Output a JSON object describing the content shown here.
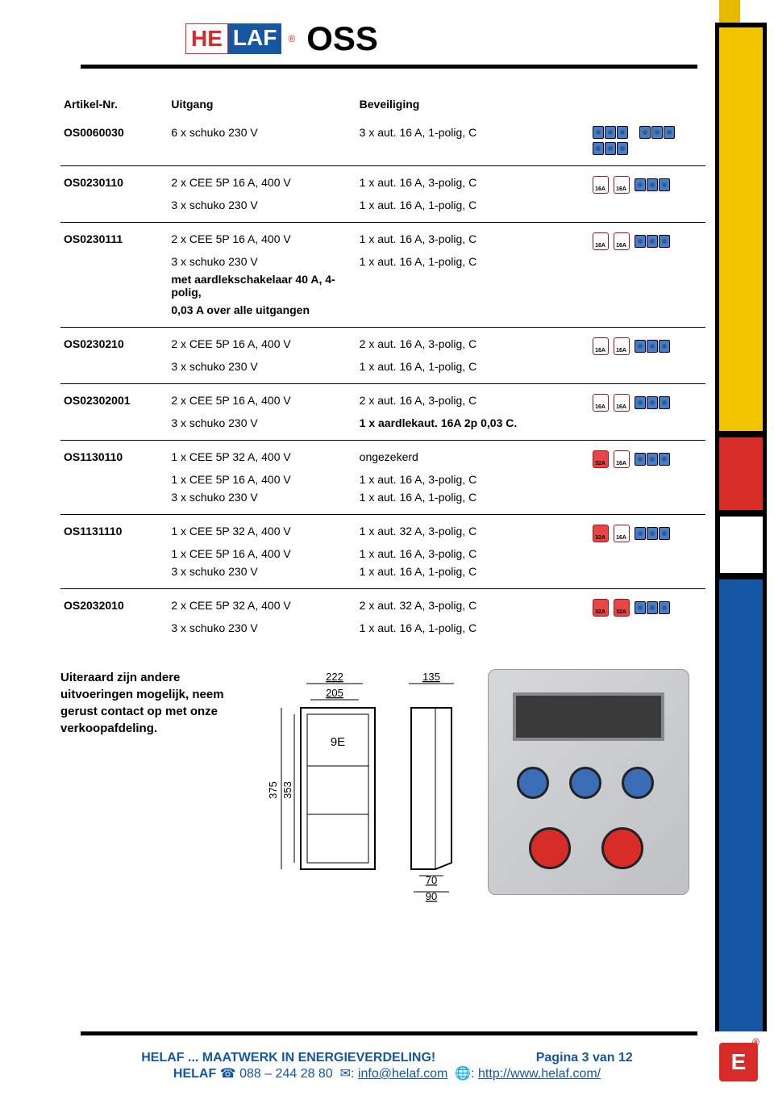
{
  "header": {
    "logo_left": "HE",
    "logo_right": "LAF",
    "title": "OSS"
  },
  "table": {
    "headers": {
      "c1": "Artikel-Nr.",
      "c2": "Uitgang",
      "c3": "Beveiliging"
    },
    "rows": [
      {
        "art": "OS0060030",
        "lines": [
          {
            "out": "6 x schuko 230 V",
            "bev": "3 x aut. 16 A, 1-polig, C"
          }
        ],
        "icons": {
          "schuko_rows": 2,
          "schuko_per": 3,
          "cee": []
        }
      },
      {
        "art": "OS0230110",
        "lines": [
          {
            "out": "2 x CEE 5P  16 A, 400 V",
            "bev": "1 x aut. 16 A, 3-polig, C"
          },
          {
            "out": "3 x schuko 230 V",
            "bev": "1 x aut. 16 A, 1-polig, C"
          }
        ],
        "icons": {
          "schuko_rows": 1,
          "schuko_per": 3,
          "cee": [
            {
              "label": "16A",
              "filled": false
            },
            {
              "label": "16A",
              "filled": false
            }
          ]
        }
      },
      {
        "art": "OS0230111",
        "lines": [
          {
            "out": "2 x CEE 5P  16 A, 400 V",
            "bev": "1 x aut. 16 A, 3-polig, C"
          },
          {
            "out": "3 x schuko 230 V",
            "bev": "1 x aut. 16 A, 1-polig, C"
          },
          {
            "out": "met aardlekschakelaar 40 A, 4-polig,",
            "bev": "",
            "bold": true
          },
          {
            "out": "0,03 A over alle uitgangen",
            "bev": "",
            "bold": true
          }
        ],
        "icons": {
          "schuko_rows": 1,
          "schuko_per": 3,
          "cee": [
            {
              "label": "16A",
              "filled": false
            },
            {
              "label": "16A",
              "filled": false
            }
          ]
        }
      },
      {
        "art": "OS0230210",
        "lines": [
          {
            "out": "2 x CEE 5P  16 A, 400 V",
            "bev": "2 x aut. 16 A, 3-polig, C"
          },
          {
            "out": "3 x schuko 230 V",
            "bev": "1 x aut. 16 A, 1-polig, C"
          }
        ],
        "icons": {
          "schuko_rows": 1,
          "schuko_per": 3,
          "cee": [
            {
              "label": "16A",
              "filled": false
            },
            {
              "label": "16A",
              "filled": false
            }
          ]
        }
      },
      {
        "art": "OS02302001",
        "lines": [
          {
            "out": "2 x CEE 5P  16 A, 400 V",
            "bev": "2 x aut. 16 A, 3-polig, C"
          },
          {
            "out": "3 x schuko 230 V",
            "bev": "1 x aardlekaut.  16A 2p 0,03 C.",
            "bev_bold": true
          }
        ],
        "icons": {
          "schuko_rows": 1,
          "schuko_per": 3,
          "cee": [
            {
              "label": "16A",
              "filled": false
            },
            {
              "label": "16A",
              "filled": false
            }
          ]
        }
      },
      {
        "art": "OS1130110",
        "lines": [
          {
            "out": "1 x CEE 5P  32 A, 400 V",
            "bev": "ongezekerd"
          },
          {
            "out": "1 x CEE 5P  16 A, 400 V",
            "bev": "1 x aut. 16 A, 3-polig, C"
          },
          {
            "out": "3 x schuko 230 V",
            "bev": "1 x aut. 16 A, 1-polig, C"
          }
        ],
        "icons": {
          "schuko_rows": 1,
          "schuko_per": 3,
          "cee": [
            {
              "label": "32A",
              "filled": true
            },
            {
              "label": "16A",
              "filled": false
            }
          ]
        }
      },
      {
        "art": "OS1131110",
        "lines": [
          {
            "out": "1 x CEE 5P  32 A, 400 V",
            "bev": "1 x aut. 32 A, 3-polig, C"
          },
          {
            "out": "1 x CEE 5P  16 A, 400 V",
            "bev": "1 x aut. 16 A, 3-polig, C"
          },
          {
            "out": "3 x schuko 230 V",
            "bev": "1 x aut. 16 A, 1-polig, C"
          }
        ],
        "icons": {
          "schuko_rows": 1,
          "schuko_per": 3,
          "cee": [
            {
              "label": "32A",
              "filled": true
            },
            {
              "label": "16A",
              "filled": false
            }
          ]
        }
      },
      {
        "art": "OS2032010",
        "lines": [
          {
            "out": "2 x CEE 5P  32 A, 400 V",
            "bev": "2 x aut. 32 A, 3-polig, C"
          },
          {
            "out": "3 x schuko 230 V",
            "bev": "1 x aut. 16 A, 1-polig, C"
          }
        ],
        "icons": {
          "schuko_rows": 1,
          "schuko_per": 3,
          "cee": [
            {
              "label": "32A",
              "filled": true
            },
            {
              "label": "32A",
              "filled": true
            }
          ]
        }
      }
    ]
  },
  "note": "Uiteraard zijn andere uitvoeringen mogelijk, neem gerust contact op met onze verkoopafdeling.",
  "diagram": {
    "w_outer": "222",
    "w_inner": "205",
    "h_outer": "375",
    "h_inner": "353",
    "side_top": "135",
    "side_bot_inner": "70",
    "side_bot_outer": "90",
    "module": "9E"
  },
  "footer": {
    "slogan": "HELAF ... MAATWERK IN ENERGIEVERDELING!",
    "page": "Pagina 3 van 12",
    "company": "HELAF",
    "phone_icon": "☎",
    "phone": "088 – 244 28 80",
    "mail_icon": "✉",
    "email": "info@helaf.com",
    "web_icon": "🌐",
    "web": "http://www.helaf.com/"
  },
  "colors": {
    "yellow": "#f3c400",
    "red": "#d82c28",
    "blue": "#1557a3",
    "black": "#000000"
  }
}
